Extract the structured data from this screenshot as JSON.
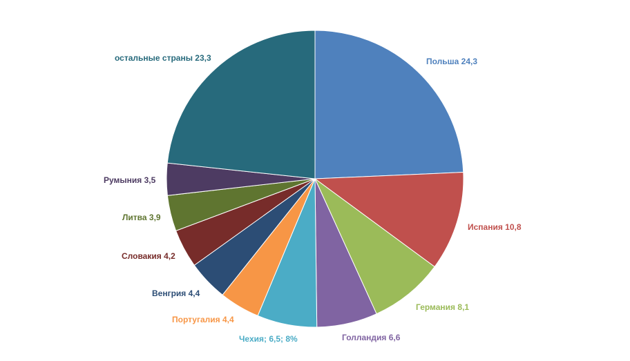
{
  "chart_data": {
    "type": "pie",
    "title": "",
    "start_angle_deg": 0,
    "direction": "clockwise",
    "slices": [
      {
        "key": "poland",
        "label": "Польша 24,3",
        "value": 24.3,
        "color": "#4F81BD",
        "label_color": "#4F81BD"
      },
      {
        "key": "spain",
        "label": "Испания 10,8",
        "value": 10.8,
        "color": "#C0504D",
        "label_color": "#C0504D"
      },
      {
        "key": "germany",
        "label": "Германия 8,1",
        "value": 8.1,
        "color": "#9BBB59",
        "label_color": "#9BBB59"
      },
      {
        "key": "holland",
        "label": "Голландия 6,6",
        "value": 6.6,
        "color": "#8064A2",
        "label_color": "#8064A2"
      },
      {
        "key": "czechia",
        "label": "Чехия; 6,5; 8%",
        "value": 6.5,
        "color": "#4BACC6",
        "label_color": "#4BACC6"
      },
      {
        "key": "portugal",
        "label": "Португалия 4,4",
        "value": 4.4,
        "color": "#F79646",
        "label_color": "#F79646"
      },
      {
        "key": "hungary",
        "label": "Венгрия 4,4",
        "value": 4.4,
        "color": "#2C4D75",
        "label_color": "#2C4D75"
      },
      {
        "key": "slovakia",
        "label": "Словакия 4,2",
        "value": 4.2,
        "color": "#772C2A",
        "label_color": "#772C2A"
      },
      {
        "key": "lithuania",
        "label": "Литва 3,9",
        "value": 3.9,
        "color": "#5F7530",
        "label_color": "#5F7530"
      },
      {
        "key": "romania",
        "label": "Румыния 3,5",
        "value": 3.5,
        "color": "#4D3B62",
        "label_color": "#4D3B62"
      },
      {
        "key": "others",
        "label": "остальные страны 23,3",
        "value": 23.3,
        "color": "#276A7C",
        "label_color": "#276A7C"
      }
    ]
  }
}
